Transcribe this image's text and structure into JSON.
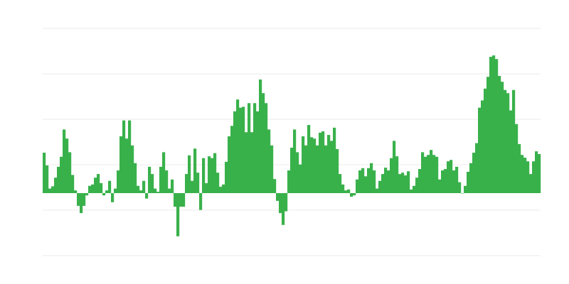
{
  "chart_data": {
    "type": "bar",
    "title": "",
    "xlabel": "",
    "ylabel": "",
    "ylim": [
      -13.75,
      36.25
    ],
    "grid": true,
    "axes_labels_visible": false,
    "bar_color": "#39b14b",
    "grid_color": "#ebebeb",
    "values": [
      8.9,
      6.1,
      1,
      1.5,
      3.4,
      5.8,
      8,
      14,
      12,
      9,
      4,
      0.6,
      -2.8,
      -4.4,
      -2.8,
      -0.5,
      1.6,
      1.9,
      3.4,
      4.2,
      2.2,
      -0.5,
      0.6,
      2.7,
      -2,
      1,
      5,
      12.5,
      16,
      12,
      16,
      10.5,
      6.6,
      1.6,
      0.6,
      2.7,
      -1.2,
      5.8,
      4.2,
      1,
      0.3,
      5.8,
      9,
      5,
      1,
      3,
      -3,
      -9.5,
      -3,
      -3,
      4.2,
      8.3,
      2.7,
      9.8,
      4.5,
      -3.7,
      7.7,
      2.2,
      8.1,
      7.7,
      8.8,
      4.5,
      1.4,
      1.9,
      6.9,
      12.5,
      14.8,
      18,
      20.6,
      18.8,
      19,
      13.4,
      19.8,
      13.4,
      19.8,
      18,
      25,
      22,
      19.8,
      14,
      10.5,
      3.1,
      -1.7,
      -4.4,
      -7,
      -4,
      5,
      10,
      14,
      9,
      6.3,
      12.5,
      10.5,
      15,
      12.3,
      12,
      10.5,
      13.3,
      13.6,
      10.5,
      12.8,
      11.5,
      14.4,
      9.7,
      4.2,
      1.9,
      0.6,
      0.8,
      -0.8,
      -0.5,
      3,
      5,
      5.5,
      3.7,
      5.5,
      6.6,
      5,
      1,
      2.7,
      4.2,
      5.6,
      5,
      7.7,
      11.5,
      8.1,
      4.2,
      4.5,
      3.9,
      4.8,
      0.8,
      1.6,
      3.4,
      5.3,
      9,
      8,
      8.4,
      9.5,
      8.4,
      8,
      3,
      5,
      5.3,
      7,
      7.3,
      5,
      5.8,
      2.4,
      0,
      1.6,
      4.7,
      6.6,
      8.9,
      11,
      18.8,
      20.4,
      23,
      25.6,
      30,
      30.3,
      29.5,
      25.8,
      24.5,
      22.7,
      22,
      18.2,
      22.7,
      15.2,
      10.8,
      8.4,
      7.8,
      7,
      4.2,
      7,
      9.2,
      8.6
    ]
  }
}
